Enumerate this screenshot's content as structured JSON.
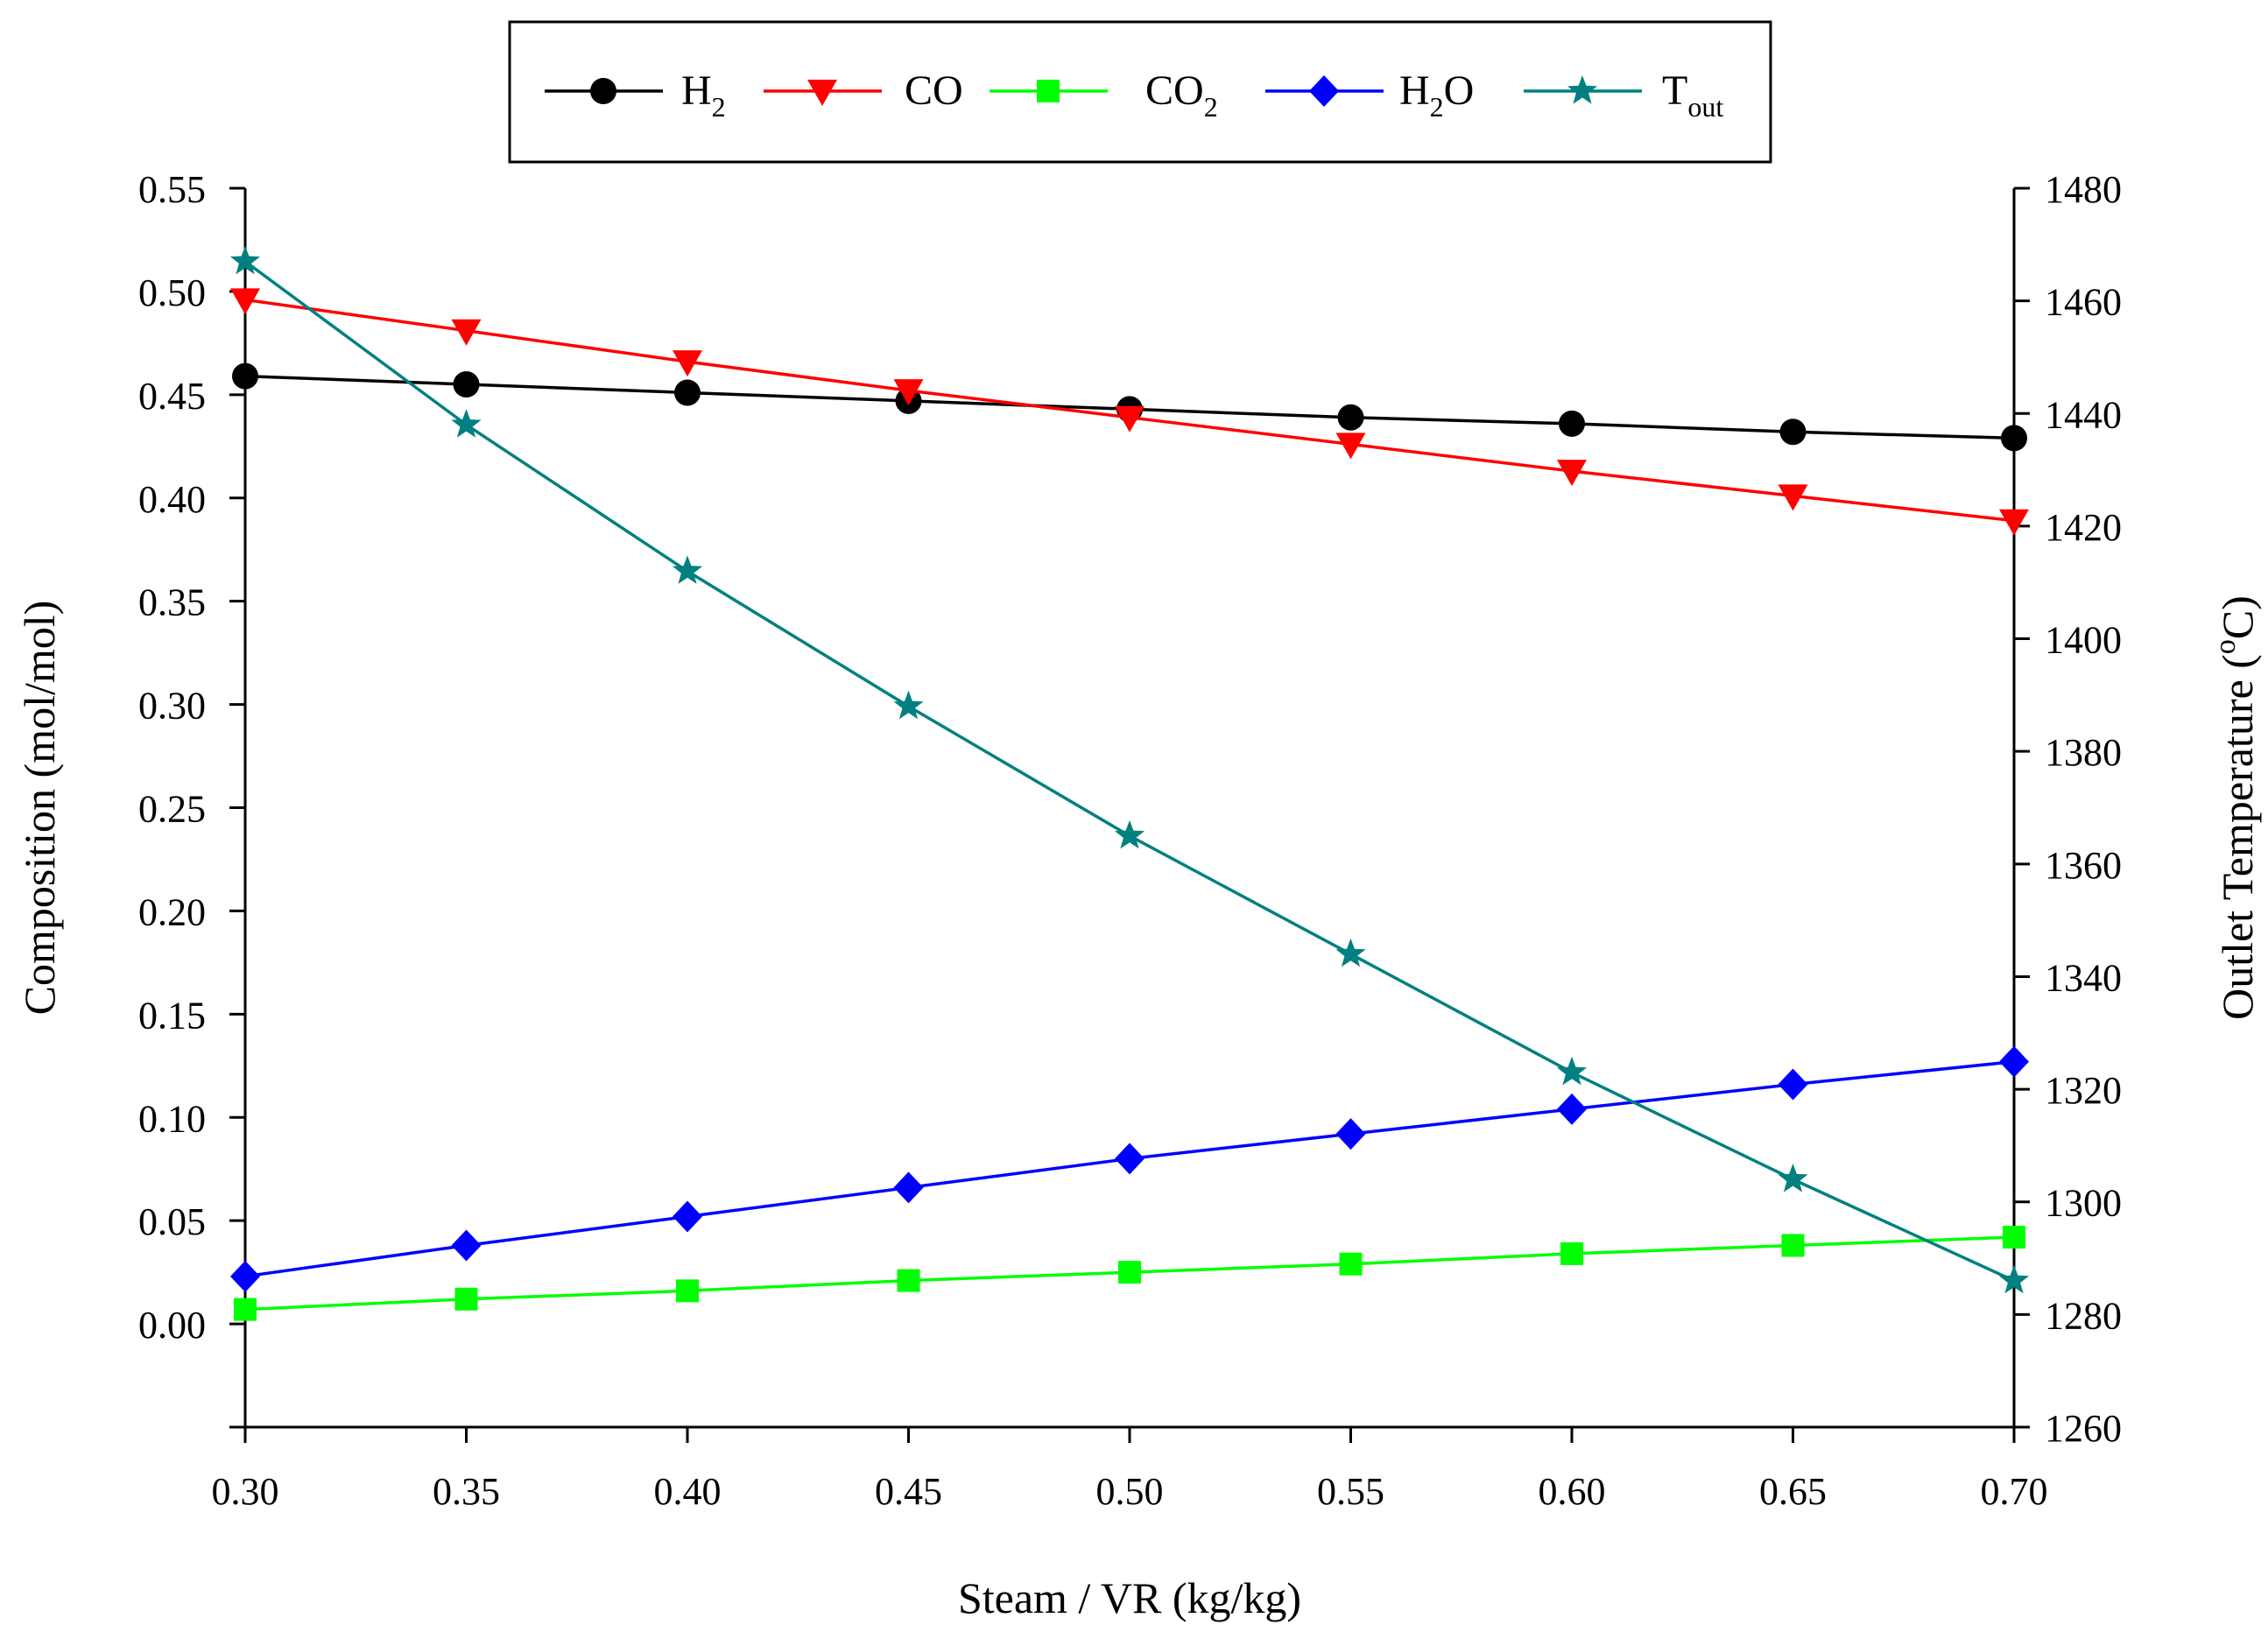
{
  "chart_data": {
    "type": "line",
    "title": "",
    "xlabel": "Steam / VR (kg/kg)",
    "ylabel": "Composition (mol/mol)",
    "y2label": {
      "base": "Outlet Temperature (",
      "sup": "o",
      "tail": "C)"
    },
    "xlim": [
      0.3,
      0.7
    ],
    "ylim": [
      -0.05,
      0.55
    ],
    "y2lim": [
      1260,
      1480
    ],
    "xticks": [
      "0.30",
      "0.35",
      "0.40",
      "0.45",
      "0.50",
      "0.55",
      "0.60",
      "0.65",
      "0.70"
    ],
    "yticks": [
      "0.00",
      "0.05",
      "0.10",
      "0.15",
      "0.20",
      "0.25",
      "0.30",
      "0.35",
      "0.40",
      "0.45",
      "0.50",
      "0.55"
    ],
    "y2ticks": [
      "1260",
      "1280",
      "1300",
      "1320",
      "1340",
      "1360",
      "1380",
      "1400",
      "1420",
      "1440",
      "1460",
      "1480"
    ],
    "x": [
      0.3,
      0.35,
      0.4,
      0.45,
      0.5,
      0.55,
      0.6,
      0.65,
      0.7
    ],
    "legend_position": "top-center",
    "series": [
      {
        "id": "h2",
        "name": "H2",
        "label_base": "H",
        "label_sub": "2",
        "label_tail": "",
        "axis": "left",
        "color": "#000000",
        "marker": "circle",
        "values": [
          0.459,
          0.455,
          0.451,
          0.447,
          0.443,
          0.439,
          0.436,
          0.432,
          0.429
        ]
      },
      {
        "id": "co",
        "name": "CO",
        "label_base": "CO",
        "label_sub": "",
        "label_tail": "",
        "axis": "left",
        "color": "#ff0000",
        "marker": "triangle-down",
        "values": [
          0.496,
          0.481,
          0.466,
          0.452,
          0.439,
          0.426,
          0.413,
          0.401,
          0.389
        ]
      },
      {
        "id": "co2",
        "name": "CO2",
        "label_base": "CO",
        "label_sub": "2",
        "label_tail": "",
        "axis": "left",
        "color": "#00ff00",
        "marker": "square",
        "values": [
          0.007,
          0.012,
          0.016,
          0.021,
          0.025,
          0.029,
          0.034,
          0.038,
          0.042
        ]
      },
      {
        "id": "h2o",
        "name": "H2O",
        "label_base": "H",
        "label_sub": "2",
        "label_tail": "O",
        "axis": "left",
        "color": "#0000ff",
        "marker": "diamond",
        "values": [
          0.023,
          0.038,
          0.052,
          0.066,
          0.08,
          0.092,
          0.104,
          0.116,
          0.127
        ]
      },
      {
        "id": "tout",
        "name": "Tout",
        "label_base": "T",
        "label_sub": "out",
        "label_tail": "",
        "axis": "right",
        "color": "#008080",
        "marker": "star",
        "values": [
          1467,
          1438,
          1412,
          1388,
          1365,
          1344,
          1323,
          1304,
          1286
        ]
      }
    ]
  }
}
